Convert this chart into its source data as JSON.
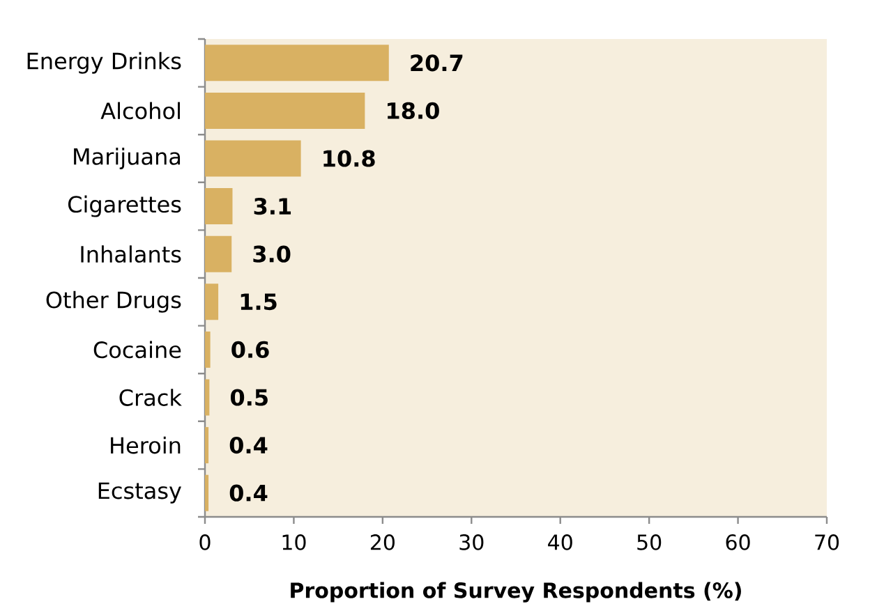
{
  "chart_data": {
    "type": "bar",
    "orientation": "horizontal",
    "categories": [
      "Energy Drinks",
      "Alcohol",
      "Marijuana",
      "Cigarettes",
      "Inhalants",
      "Other Drugs",
      "Cocaine",
      "Crack",
      "Heroin",
      "Ecstasy"
    ],
    "values": [
      20.7,
      18.0,
      10.8,
      3.1,
      3.0,
      1.5,
      0.6,
      0.5,
      0.4,
      0.4
    ],
    "value_labels": [
      "20.7",
      "18.0",
      "10.8",
      "3.1",
      "3.0",
      "1.5",
      "0.6",
      "0.5",
      "0.4",
      "0.4"
    ],
    "color": "#d9b162",
    "xlabel": "Proportion of Survey Respondents (%)",
    "xlim": [
      0,
      70
    ],
    "xticks": [
      0,
      10,
      20,
      30,
      40,
      50,
      60,
      70
    ]
  }
}
